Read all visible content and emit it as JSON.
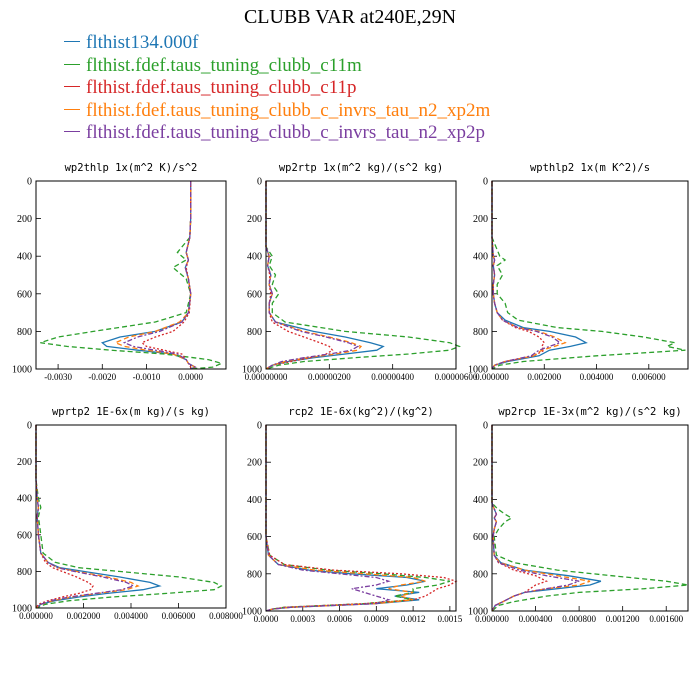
{
  "title": "CLUBB VAR at240E,29N",
  "legend": [
    {
      "label": "flthist134.000f",
      "color": "#1f77b4",
      "dash": ""
    },
    {
      "label": "flthist.fdef.taus_tuning_clubb_c11m",
      "color": "#2ca02c",
      "dash": "5,3"
    },
    {
      "label": "flthist.fdef.taus_tuning_clubb_c11p",
      "color": "#d62728",
      "dash": "2,2"
    },
    {
      "label": "flthist.fdef.taus_tuning_clubb_c_invrs_tau_n2_xp2m",
      "color": "#ff7f0e",
      "dash": "5,3"
    },
    {
      "label": "flthist.fdef.taus_tuning_clubb_c_invrs_tau_n2_xp2p",
      "color": "#7b3fa0",
      "dash": "5,2,2,2"
    }
  ],
  "chart_data": [
    {
      "type": "line",
      "title": "wp2thlp  1x(m^2 K)/s^2",
      "xlim": [
        -0.0035,
        0.0008
      ],
      "ylim": [
        1000,
        0
      ],
      "xticks": [
        -0.003,
        -0.002,
        -0.001,
        0.0
      ],
      "xtick_labels": [
        "-0.0030",
        "-0.0020",
        "-0.0010",
        "0.0000"
      ],
      "yticks": [
        0,
        200,
        400,
        600,
        800,
        1000
      ],
      "y": [
        0,
        100,
        200,
        300,
        380,
        420,
        460,
        520,
        600,
        700,
        750,
        800,
        830,
        860,
        880,
        900,
        920,
        950,
        970,
        990,
        1000
      ],
      "series": [
        {
          "values": [
            0,
            0,
            0,
            -2e-05,
            -0.0001,
            -5e-05,
            -0.00012,
            -5e-05,
            0,
            -5e-05,
            -0.0002,
            -0.0008,
            -0.0016,
            -0.002,
            -0.0019,
            -0.0012,
            -0.0004,
            -0.0001,
            -5e-05,
            0.0001,
            0
          ]
        },
        {
          "values": [
            0,
            0,
            0,
            -2e-05,
            -0.0003,
            -0.0001,
            -0.0004,
            -0.0001,
            0,
            -0.0001,
            -0.0008,
            -0.0022,
            -0.003,
            -0.0034,
            -0.0028,
            -0.0018,
            -0.0006,
            0.0004,
            0.0007,
            0.0005,
            0
          ]
        },
        {
          "values": [
            0,
            0,
            0,
            -2e-05,
            -0.0001,
            -5e-05,
            -0.0001,
            -5e-05,
            0,
            -3e-05,
            -0.00015,
            -0.0004,
            -0.0008,
            -0.0011,
            -0.001,
            -0.0006,
            -0.0002,
            -0.0001,
            -5e-05,
            0,
            0
          ]
        },
        {
          "values": [
            0,
            0,
            0,
            -2e-05,
            -0.0001,
            -5e-05,
            -0.00012,
            -5e-05,
            0,
            -5e-05,
            -0.00025,
            -0.0008,
            -0.0014,
            -0.0017,
            -0.0015,
            -0.001,
            -0.0004,
            -0.0001,
            -5e-05,
            0.0001,
            0
          ]
        },
        {
          "values": [
            0,
            0,
            0,
            -2e-05,
            -0.0001,
            -5e-05,
            -0.00012,
            -5e-05,
            0,
            -5e-05,
            -0.0002,
            -0.0007,
            -0.0012,
            -0.0015,
            -0.0013,
            -0.0008,
            -0.0003,
            -0.0001,
            -5e-05,
            0.0001,
            0
          ]
        }
      ]
    },
    {
      "type": "line",
      "title": "wp2rtp  1x(m^2 kg)/(s^2 kg)",
      "xlim": [
        0,
        6e-06
      ],
      "ylim": [
        1000,
        0
      ],
      "xticks": [
        0,
        2e-06,
        4e-06,
        6e-06
      ],
      "xtick_labels": [
        "0.00000000",
        "0.00000200",
        "0.00000400",
        "0.00000600"
      ],
      "yticks": [
        0,
        200,
        400,
        600,
        800,
        1000
      ],
      "y": [
        0,
        200,
        350,
        400,
        450,
        500,
        550,
        600,
        650,
        700,
        750,
        800,
        830,
        860,
        880,
        900,
        920,
        940,
        960,
        980,
        1000
      ],
      "series": [
        {
          "values": [
            0,
            0,
            0,
            1e-07,
            5e-08,
            1.5e-07,
            1e-07,
            2e-07,
            1e-07,
            1e-07,
            3e-07,
            1.5e-06,
            2.5e-06,
            3.3e-06,
            3.7e-06,
            3.5e-06,
            2.5e-06,
            1.5e-06,
            7e-07,
            2e-07,
            0
          ]
        },
        {
          "values": [
            0,
            0,
            0,
            2e-07,
            1e-07,
            3e-07,
            2e-07,
            4e-07,
            2e-07,
            2e-07,
            6e-07,
            2.5e-06,
            4.5e-06,
            5.8e-06,
            6.1e-06,
            5.8e-06,
            4.5e-06,
            2.8e-06,
            1.2e-06,
            4e-07,
            0
          ]
        },
        {
          "values": [
            0,
            0,
            0,
            1e-07,
            5e-08,
            1.2e-07,
            1e-07,
            1.5e-07,
            1e-07,
            1e-07,
            2e-07,
            7e-07,
            1.2e-06,
            1.7e-06,
            2e-06,
            2.1e-06,
            1.9e-06,
            1.4e-06,
            8e-07,
            2e-07,
            0
          ]
        },
        {
          "values": [
            0,
            0,
            0,
            1e-07,
            5e-08,
            1.5e-07,
            1e-07,
            2e-07,
            1e-07,
            1e-07,
            3e-07,
            1.2e-06,
            2e-06,
            2.7e-06,
            3e-06,
            2.9e-06,
            2.2e-06,
            1.3e-06,
            6e-07,
            2e-07,
            0
          ]
        },
        {
          "values": [
            0,
            0,
            0,
            1e-07,
            5e-08,
            1.5e-07,
            1e-07,
            2e-07,
            1e-07,
            1e-07,
            3e-07,
            1.1e-06,
            1.9e-06,
            2.6e-06,
            2.9e-06,
            2.7e-06,
            2e-06,
            1.2e-06,
            5e-07,
            2e-07,
            0
          ]
        }
      ]
    },
    {
      "type": "line",
      "title": "wpthlp2  1x(m K^2)/s",
      "xlim": [
        0,
        0.0075
      ],
      "ylim": [
        1000,
        0
      ],
      "xticks": [
        0,
        0.002,
        0.004,
        0.006
      ],
      "xtick_labels": [
        "0.000000",
        "0.002000",
        "0.004000",
        "0.006000"
      ],
      "yticks": [
        0,
        200,
        400,
        600,
        800,
        1000
      ],
      "y": [
        0,
        300,
        400,
        420,
        450,
        500,
        550,
        600,
        650,
        700,
        740,
        780,
        800,
        830,
        860,
        880,
        900,
        930,
        960,
        980,
        1000
      ],
      "series": [
        {
          "values": [
            0,
            0,
            5e-05,
            0.0001,
            5e-05,
            0.0001,
            5e-05,
            5e-05,
            0.0001,
            0.0002,
            0.0005,
            0.0012,
            0.0022,
            0.0032,
            0.0036,
            0.003,
            0.0022,
            0.0018,
            0.0006,
            0.0001,
            0
          ]
        },
        {
          "values": [
            0,
            0,
            0.0003,
            0.0005,
            0.0002,
            0.0004,
            0.0002,
            0.0002,
            0.0005,
            0.0006,
            0.001,
            0.0025,
            0.0042,
            0.0058,
            0.007,
            0.0067,
            0.0074,
            0.004,
            0.0012,
            0.0003,
            0
          ]
        },
        {
          "values": [
            0,
            0,
            5e-05,
            0.0001,
            5e-05,
            0.0001,
            5e-05,
            5e-05,
            0.0001,
            0.0002,
            0.0004,
            0.0009,
            0.0014,
            0.0018,
            0.002,
            0.0019,
            0.002,
            0.0016,
            0.0005,
            0.0001,
            0
          ]
        },
        {
          "values": [
            0,
            0,
            5e-05,
            0.0001,
            5e-05,
            0.0001,
            5e-05,
            5e-05,
            0.0001,
            0.0002,
            0.0004,
            0.001,
            0.0018,
            0.0024,
            0.0028,
            0.0024,
            0.0019,
            0.0016,
            0.0005,
            0.0001,
            0
          ]
        },
        {
          "values": [
            0,
            0,
            5e-05,
            0.0001,
            5e-05,
            0.0001,
            5e-05,
            5e-05,
            0.0001,
            0.0002,
            0.0004,
            0.001,
            0.0017,
            0.0023,
            0.0026,
            0.0022,
            0.0018,
            0.0015,
            0.0005,
            0.0001,
            0
          ]
        }
      ]
    },
    {
      "type": "line",
      "title": "wprtp2  1E-6x(m kg)/(s kg)",
      "xlim": [
        0,
        0.008
      ],
      "ylim": [
        1000,
        0
      ],
      "xticks": [
        0,
        0.002,
        0.004,
        0.006,
        0.008
      ],
      "xtick_labels": [
        "0.000000",
        "0.002000",
        "0.004000",
        "0.006000",
        "0.008000"
      ],
      "yticks": [
        0,
        200,
        400,
        600,
        800,
        1000
      ],
      "y": [
        0,
        300,
        400,
        450,
        500,
        600,
        700,
        750,
        780,
        800,
        830,
        860,
        880,
        900,
        920,
        940,
        960,
        980,
        1000
      ],
      "series": [
        {
          "values": [
            0,
            0,
            5e-05,
            0.0001,
            5e-05,
            0.0001,
            0.0002,
            0.0005,
            0.001,
            0.002,
            0.0035,
            0.0048,
            0.0052,
            0.0045,
            0.003,
            0.0018,
            0.0008,
            0.0002,
            0
          ]
        },
        {
          "values": [
            0,
            0,
            0.0001,
            0.0002,
            0.0001,
            0.0002,
            0.0003,
            0.0008,
            0.0018,
            0.0035,
            0.006,
            0.0075,
            0.0078,
            0.0075,
            0.0055,
            0.0032,
            0.0014,
            0.0004,
            0
          ]
        },
        {
          "values": [
            0,
            0,
            5e-05,
            0.0001,
            5e-05,
            0.0001,
            0.0002,
            0.0004,
            0.0007,
            0.0011,
            0.0017,
            0.0022,
            0.0024,
            0.0023,
            0.0018,
            0.0011,
            0.0005,
            0.0001,
            0
          ]
        },
        {
          "values": [
            0,
            0,
            5e-05,
            0.0001,
            5e-05,
            0.0001,
            0.0002,
            0.0005,
            0.0009,
            0.0017,
            0.003,
            0.004,
            0.0043,
            0.0038,
            0.0026,
            0.0015,
            0.0007,
            0.0002,
            0
          ]
        },
        {
          "values": [
            0,
            0,
            5e-05,
            0.0001,
            5e-05,
            0.0001,
            0.0002,
            0.0005,
            0.0009,
            0.0016,
            0.0028,
            0.0038,
            0.0041,
            0.0036,
            0.0025,
            0.0014,
            0.0006,
            0.0002,
            0
          ]
        }
      ]
    },
    {
      "type": "line",
      "title": "rcp2  1E-6x(kg^2)/(kg^2)",
      "xlim": [
        0,
        0.00155
      ],
      "ylim": [
        1000,
        0
      ],
      "xticks": [
        0,
        0.0003,
        0.0006,
        0.0009,
        0.0012,
        0.0015
      ],
      "xtick_labels": [
        "0.0000",
        "0.0003",
        "0.0006",
        "0.0009",
        "0.0012",
        "0.0015"
      ],
      "yticks": [
        0,
        200,
        400,
        600,
        800,
        1000
      ],
      "y": [
        0,
        600,
        700,
        750,
        780,
        800,
        820,
        840,
        860,
        880,
        900,
        920,
        940,
        960,
        980,
        990,
        1000
      ],
      "series": [
        {
          "values": [
            0,
            0,
            2e-05,
            0.0001,
            0.00035,
            0.0007,
            0.00115,
            0.0013,
            0.00115,
            0.0009,
            0.00125,
            0.00105,
            0.00125,
            0.0009,
            0.0002,
            5e-05,
            0
          ]
        },
        {
          "values": [
            0,
            0,
            3e-05,
            0.00015,
            0.0005,
            0.00095,
            0.0013,
            0.0015,
            0.0014,
            0.0012,
            0.0012,
            0.00105,
            0.0012,
            0.0008,
            0.00015,
            5e-05,
            0
          ]
        },
        {
          "values": [
            0,
            0,
            3e-05,
            0.00015,
            0.00055,
            0.0011,
            0.00145,
            0.00155,
            0.0015,
            0.0014,
            0.00135,
            0.0013,
            0.0012,
            0.0008,
            0.00015,
            5e-05,
            0
          ]
        },
        {
          "values": [
            0,
            0,
            2e-05,
            0.0001,
            0.0004,
            0.0008,
            0.0012,
            0.0013,
            0.0011,
            0.001,
            0.0012,
            0.0011,
            0.0012,
            0.0009,
            0.0002,
            5e-05,
            0
          ]
        },
        {
          "values": [
            0,
            0,
            2e-05,
            0.0001,
            0.0003,
            0.0006,
            0.0009,
            0.001,
            0.0009,
            0.0007,
            0.0008,
            0.0009,
            0.001,
            0.0009,
            0.0002,
            5e-05,
            0
          ]
        }
      ]
    },
    {
      "type": "line",
      "title": "wp2rcp  1E-3x(m^2 kg)/(s^2 kg)",
      "xlim": [
        0,
        0.0018
      ],
      "ylim": [
        1000,
        0
      ],
      "xticks": [
        0,
        0.0004,
        0.0008,
        0.0012,
        0.0016
      ],
      "xtick_labels": [
        "0.000000",
        "0.000400",
        "0.000800",
        "0.001200",
        "0.001600"
      ],
      "yticks": [
        0,
        200,
        400,
        600,
        800,
        1000
      ],
      "y": [
        0,
        300,
        420,
        450,
        480,
        500,
        520,
        560,
        600,
        700,
        740,
        780,
        810,
        840,
        860,
        880,
        900,
        920,
        950,
        970,
        990,
        1000
      ],
      "series": [
        {
          "values": [
            0,
            0,
            0,
            2e-05,
            4e-05,
            2e-05,
            4e-05,
            2e-05,
            1e-05,
            2e-05,
            8e-05,
            0.0003,
            0.0007,
            0.001,
            0.0009,
            0.0006,
            0.0003,
            0.0002,
            0.0001,
            3e-05,
            1e-05,
            0
          ]
        },
        {
          "values": [
            0,
            0,
            0,
            5e-05,
            0.00012,
            0.00018,
            0.00012,
            6e-05,
            2e-05,
            4e-05,
            0.0002,
            0.0006,
            0.0011,
            0.0016,
            0.0018,
            0.0014,
            0.0008,
            0.0005,
            0.0002,
            6e-05,
            2e-05,
            0
          ]
        },
        {
          "values": [
            0,
            0,
            0,
            2e-05,
            4e-05,
            2e-05,
            4e-05,
            2e-05,
            1e-05,
            2e-05,
            6e-05,
            0.0002,
            0.0004,
            0.0005,
            0.0004,
            0.00035,
            0.0003,
            0.0002,
            0.0001,
            3e-05,
            1e-05,
            0
          ]
        },
        {
          "values": [
            0,
            0,
            0,
            2e-05,
            4e-05,
            2e-05,
            4e-05,
            2e-05,
            1e-05,
            2e-05,
            7e-05,
            0.0003,
            0.0006,
            0.0009,
            0.0008,
            0.0005,
            0.0003,
            0.0002,
            0.0001,
            3e-05,
            1e-05,
            0
          ]
        },
        {
          "values": [
            0,
            0,
            0,
            2e-05,
            4e-05,
            2e-05,
            4e-05,
            2e-05,
            1e-05,
            2e-05,
            6e-05,
            0.00025,
            0.0005,
            0.0008,
            0.0007,
            0.0005,
            0.0003,
            0.0002,
            0.0001,
            3e-05,
            1e-05,
            0
          ]
        }
      ]
    }
  ]
}
